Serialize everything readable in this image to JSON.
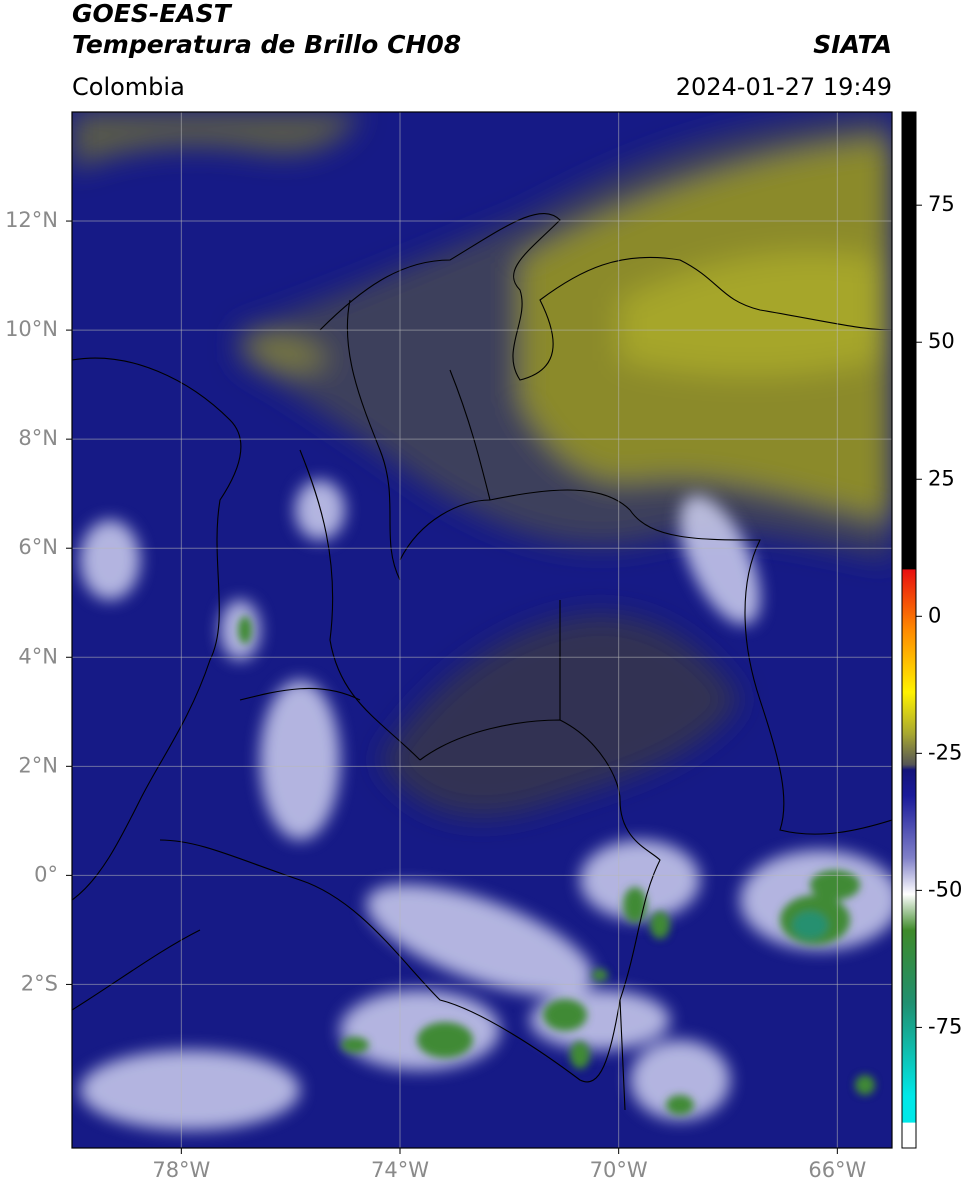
{
  "chart_data": {
    "type": "map",
    "title": "GOES-EAST",
    "subtitle": "Temperatura de Brillo CH08",
    "source": "SIATA",
    "region": "Colombia",
    "datetime": "2024-01-27 19:49",
    "xlim": [
      -80,
      -65
    ],
    "ylim": [
      -5,
      14
    ],
    "xticks": [
      {
        "value": -78,
        "label": "78°W"
      },
      {
        "value": -74,
        "label": "74°W"
      },
      {
        "value": -70,
        "label": "70°W"
      },
      {
        "value": -66,
        "label": "66°W"
      }
    ],
    "yticks": [
      {
        "value": -2,
        "label": "2°S"
      },
      {
        "value": 0,
        "label": "0°"
      },
      {
        "value": 2,
        "label": "2°N"
      },
      {
        "value": 4,
        "label": "4°N"
      },
      {
        "value": 6,
        "label": "6°N"
      },
      {
        "value": 8,
        "label": "8°N"
      },
      {
        "value": 10,
        "label": "10°N"
      },
      {
        "value": 12,
        "label": "12°N"
      }
    ],
    "grid": true,
    "clim": [
      -97,
      92
    ],
    "cticks": [
      -75,
      -50,
      -25,
      0,
      25,
      50,
      75
    ]
  }
}
